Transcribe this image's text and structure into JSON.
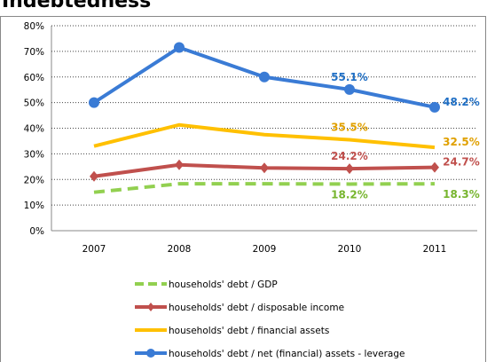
{
  "chart_data": {
    "type": "line",
    "title": "Indebtedness",
    "categories": [
      "2007",
      "2008",
      "2009",
      "2010",
      "2011"
    ],
    "ylim": [
      0,
      80
    ],
    "yticks": [
      {
        "value": 0,
        "label": "0%"
      },
      {
        "value": 10,
        "label": "10%"
      },
      {
        "value": 20,
        "label": "20%"
      },
      {
        "value": 30,
        "label": "30%"
      },
      {
        "value": 40,
        "label": "40%"
      },
      {
        "value": 50,
        "label": "50%"
      },
      {
        "value": 60,
        "label": "60%"
      },
      {
        "value": 70,
        "label": "70%"
      },
      {
        "value": 80,
        "label": "80%"
      }
    ],
    "grid": true,
    "legend": "bottom",
    "series": [
      {
        "name": "households' debt / GDP",
        "color": "#92d050",
        "dash": true,
        "marker": "none",
        "values": [
          15,
          18.3,
          18.3,
          18.2,
          18.3
        ],
        "value_labels": [
          null,
          null,
          null,
          "18.2%",
          "18.3%"
        ],
        "label_color": "#77b52e"
      },
      {
        "name": "households' debt / disposable income",
        "color": "#c0504d",
        "marker": "diamond",
        "values": [
          21.2,
          25.7,
          24.5,
          24.2,
          24.7
        ],
        "value_labels": [
          null,
          null,
          null,
          "24.2%",
          "24.7%"
        ],
        "label_color": "#c0504d"
      },
      {
        "name": "households' debt / financial assets",
        "color": "#ffc000",
        "marker": "none",
        "values": [
          33,
          41.3,
          37.5,
          35.5,
          32.5
        ],
        "value_labels": [
          null,
          null,
          null,
          "35.5%",
          "32.5%"
        ],
        "label_color": "#e0a000"
      },
      {
        "name": "households' debt / net (financial) assets - leverage",
        "color": "#3a7bd5",
        "marker": "circle",
        "values": [
          50,
          71.5,
          60,
          55.1,
          48.2
        ],
        "value_labels": [
          null,
          null,
          null,
          "55.1%",
          "48.2%"
        ],
        "label_color": "#1f6fc5"
      }
    ]
  }
}
